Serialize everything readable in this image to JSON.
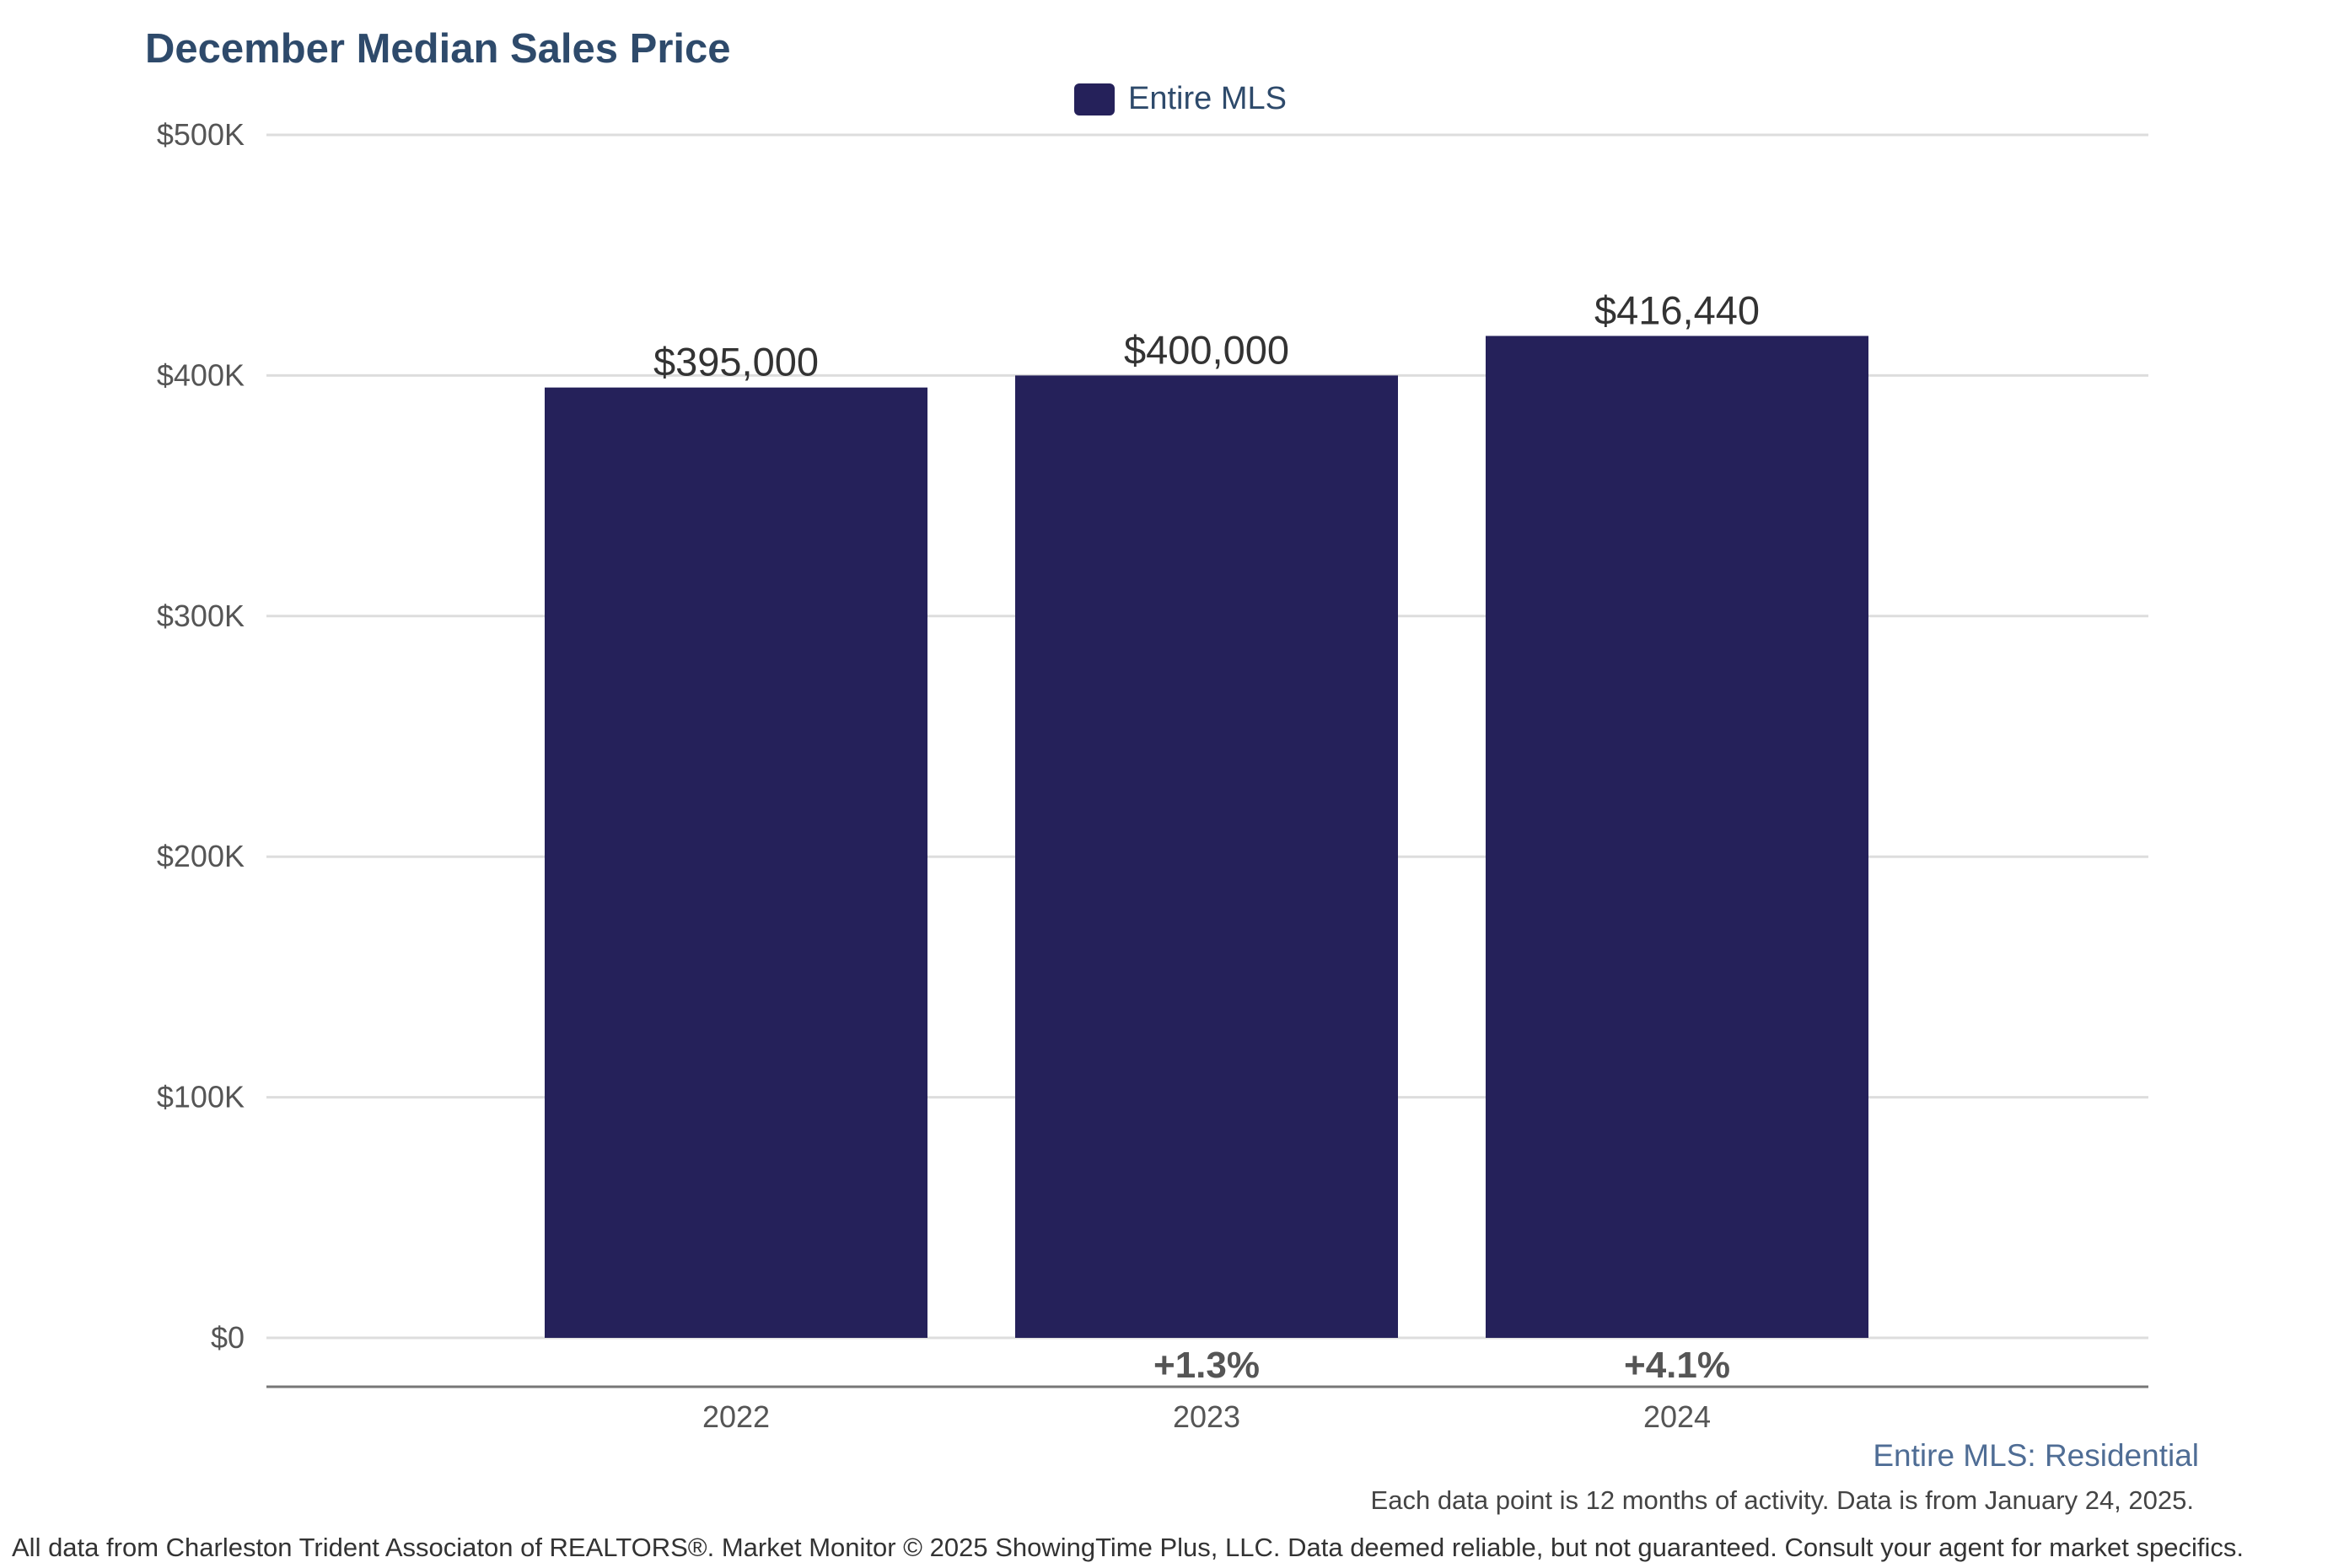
{
  "chart_data": {
    "type": "bar",
    "title": "December Median Sales Price",
    "categories": [
      "2022",
      "2023",
      "2024"
    ],
    "series": [
      {
        "name": "Entire MLS",
        "values": [
          395000,
          400000,
          416440
        ],
        "data_labels": [
          "$395,000",
          "$400,000",
          "$416,440"
        ],
        "color": "#25215a"
      }
    ],
    "change_labels": [
      "",
      "+1.3%",
      "+4.1%"
    ],
    "ylim": [
      0,
      500000
    ],
    "yticks": [
      0,
      100000,
      200000,
      300000,
      400000,
      500000
    ],
    "ytick_labels": [
      "$0",
      "$100K",
      "$200K",
      "$300K",
      "$400K",
      "$500K"
    ],
    "xlabel": "",
    "ylabel": "",
    "grid": true,
    "legend_position": "top-center"
  },
  "colors": {
    "bar": "#25215a",
    "title": "#2e4a6b",
    "subtitle": "#4f6d95",
    "grid": "#dddddd",
    "axis": "#777777"
  },
  "subtitle": "Entire MLS: Residential",
  "note": "Each data point is 12 months of activity. Data is from January 24, 2025.",
  "footer": "All data from Charleston Trident Associaton of REALTORS®. Market Monitor © 2025 ShowingTime Plus, LLC. Data deemed reliable, but not guaranteed. Consult your agent for market specifics."
}
